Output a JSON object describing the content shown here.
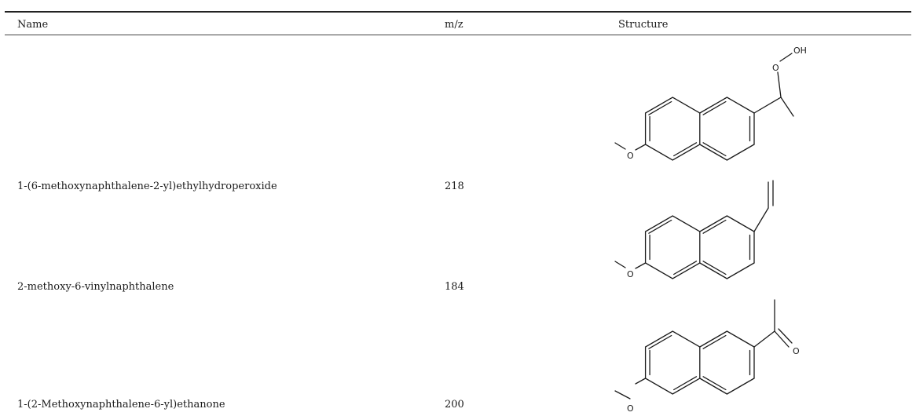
{
  "table": {
    "columns": {
      "name": "Name",
      "mz": "m/z",
      "structure": "Structure"
    },
    "rows": [
      {
        "name": "1-(6-methoxynaphthalene-2-yl)ethylhydroperoxide",
        "mz": "218",
        "structure_atoms": {
          "o1": "O",
          "o2": "O",
          "oh": "OH"
        }
      },
      {
        "name": "2-methoxy-6-vinylnaphthalene",
        "mz": "184",
        "structure_atoms": {
          "o1": "O"
        }
      },
      {
        "name": "1-(2-Methoxynaphthalene-6-yl)ethanone",
        "mz": "200",
        "structure_atoms": {
          "o1": "O",
          "o2": "O"
        }
      }
    ]
  }
}
